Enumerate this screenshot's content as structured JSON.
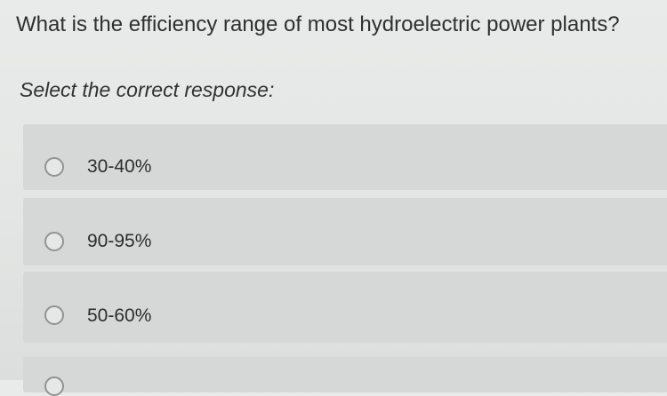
{
  "question": {
    "text": "What is the efficiency range of most hydroelectric power plants?"
  },
  "prompt": {
    "text": "Select the correct response:"
  },
  "options": [
    {
      "label": "30-40%",
      "selected": false
    },
    {
      "label": "90-95%",
      "selected": false
    },
    {
      "label": "50-60%",
      "selected": false
    },
    {
      "label": "",
      "selected": false
    }
  ],
  "colors": {
    "background": "#e6e8e7",
    "option_background": "#d5d8d6",
    "radio_border": "#909491",
    "text": "#2e302f"
  }
}
